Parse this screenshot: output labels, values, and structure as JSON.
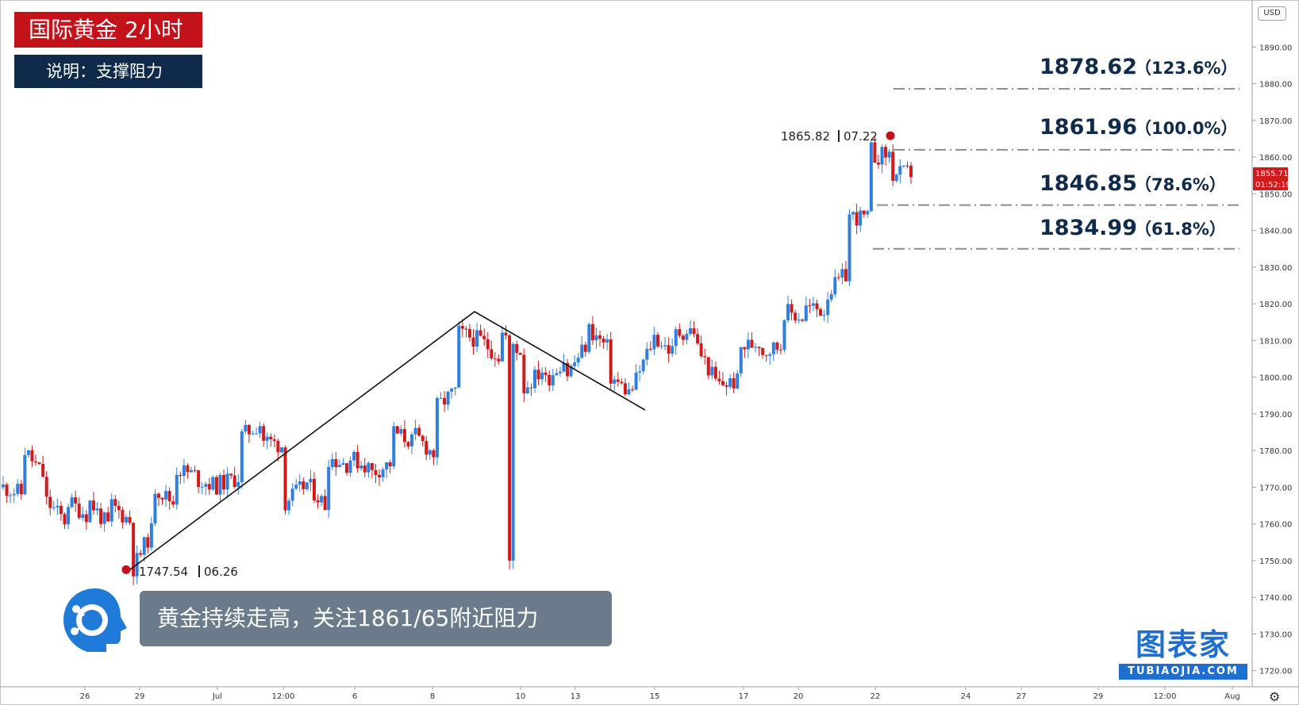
{
  "header": {
    "title": "国际黄金 2小时",
    "subtitle": "说明：支撑阻力"
  },
  "note": "黄金持续走高，关注1861/65附近阻力",
  "watermark": {
    "main": "图表家",
    "sub": "TUBIAOJIA.COM"
  },
  "currency_label": "USD",
  "settings_icon": "gear-icon",
  "colors": {
    "up": "#2f7fe0",
    "down": "#d11a1a",
    "level_line": "#8c8c8c",
    "title_bg": "#c4121a",
    "subtitle_bg": "#0f2a4a",
    "note_bg": "#6b7b8b",
    "watermark": "#1f6fd1"
  },
  "chart_data": {
    "type": "candlestick",
    "title": "国际黄金 2小时",
    "ylim": [
      1715,
      1895
    ],
    "y_ticks": [
      1720,
      1730,
      1740,
      1750,
      1760,
      1770,
      1780,
      1790,
      1800,
      1810,
      1820,
      1830,
      1840,
      1850,
      1860,
      1870,
      1880,
      1890
    ],
    "x_ticks": [
      "26",
      "29",
      "Jul",
      "12:00",
      "6",
      "8",
      "10",
      "13",
      "15",
      "17",
      "20",
      "22",
      "24",
      "27",
      "29",
      "12:00",
      "Aug"
    ],
    "price_path": [
      [
        1770,
        1768
      ],
      [
        1780,
        1772
      ],
      [
        1766,
        1760
      ],
      [
        1766,
        1762
      ],
      [
        1766,
        1758
      ],
      [
        1765,
        1760
      ],
      [
        1748,
        1760
      ],
      [
        1770,
        1765
      ],
      [
        1775,
        1773
      ],
      [
        1772,
        1770
      ],
      [
        1771,
        1773
      ],
      [
        1784,
        1788
      ],
      [
        1783,
        1781
      ],
      [
        1766,
        1771
      ],
      [
        1771,
        1764
      ],
      [
        1778,
        1776
      ],
      [
        1778,
        1775
      ],
      [
        1774,
        1777
      ],
      [
        1785,
        1782
      ],
      [
        1784,
        1778
      ],
      [
        1792,
        1797
      ],
      [
        1812,
        1810
      ],
      [
        1810,
        1805
      ],
      [
        1812,
        1806
      ],
      [
        1797,
        1803
      ],
      [
        1799,
        1806
      ],
      [
        1801,
        1810
      ],
      [
        1813,
        1807
      ],
      [
        1800,
        1795
      ],
      [
        1797,
        1811
      ],
      [
        1811,
        1806
      ],
      [
        1812,
        1813
      ],
      [
        1808,
        1797
      ],
      [
        1798,
        1799
      ],
      [
        1808,
        1810
      ],
      [
        1807,
        1809
      ],
      [
        1818,
        1816
      ],
      [
        1819,
        1818
      ],
      [
        1823,
        1829
      ],
      [
        1844,
        1843
      ],
      [
        1860,
        1861
      ],
      [
        1855,
        1856
      ]
    ],
    "current_price": {
      "price": "1855.71",
      "countdown": "01:52:19"
    },
    "markers": [
      {
        "label_price": "1865.82",
        "label_time": "07.22",
        "price": 1865.82
      },
      {
        "label_price": "1747.54",
        "label_time": "06.26",
        "price": 1747.54
      }
    ],
    "levels": [
      {
        "value": "1878.62",
        "pct": "（123.6%）",
        "line_price": 1878.6
      },
      {
        "value": "1861.96",
        "pct": "（100.0%）",
        "line_price": 1862.0
      },
      {
        "value": "1846.85",
        "pct": "（78.6%）",
        "line_price": 1846.9
      },
      {
        "value": "1834.99",
        "pct": "（61.8%）",
        "line_price": 1835.0
      }
    ],
    "trendlines": [
      {
        "points": [
          [
            1747.5,
            "06.26"
          ],
          [
            1818.5,
            "07.08"
          ],
          [
            1791.5,
            "07.14"
          ]
        ]
      }
    ]
  }
}
